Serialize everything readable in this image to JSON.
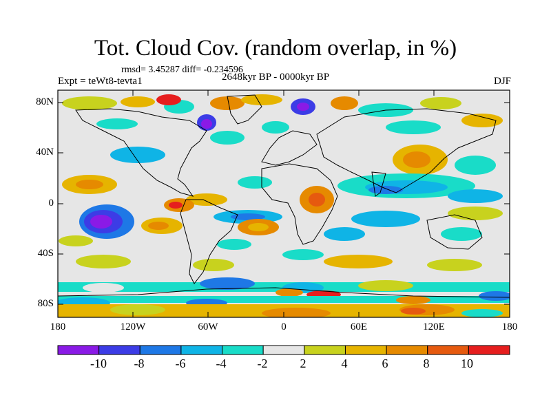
{
  "title": "Tot. Cloud Cov. (random overlap, in %)",
  "stats": "rmsd= 3.45287 diff= -0.234596",
  "experiment": "Expt = teWt8-tevta1",
  "period": "2648kyr BP - 0000kyr BP",
  "season": "DJF",
  "lat_labels": [
    "80N",
    "40N",
    "0",
    "40S",
    "80S"
  ],
  "lon_labels": [
    "180",
    "120W",
    "60W",
    "0",
    "60E",
    "120E",
    "180"
  ],
  "colorbar": {
    "labels": [
      "-10",
      "-8",
      "-6",
      "-4",
      "-2",
      "2",
      "4",
      "6",
      "8",
      "10"
    ],
    "colors": [
      "#8a1ae6",
      "#3c3ce6",
      "#1e78e6",
      "#0fb4e6",
      "#19dcc8",
      "#e6e6e6",
      "#c8d21e",
      "#e6b400",
      "#e68a00",
      "#e65a0f",
      "#e61e1e"
    ]
  }
}
